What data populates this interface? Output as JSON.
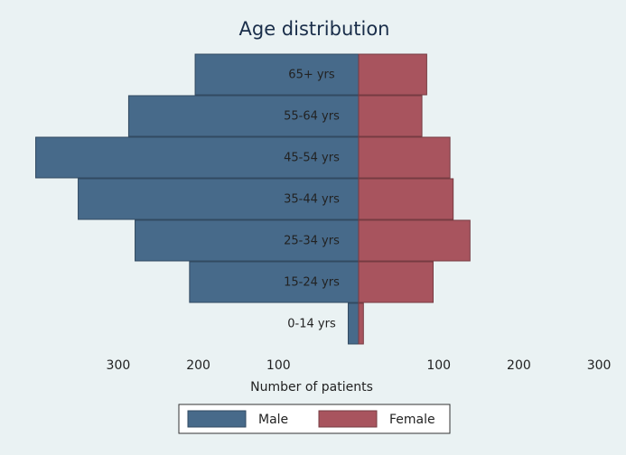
{
  "chart_data": {
    "type": "pyramid",
    "title": "Age distribution",
    "x_label": "Number of patients",
    "categories": [
      "65+ yrs",
      "55-64 yrs",
      "45-54 yrs",
      "35-44 yrs",
      "25-34 yrs",
      "15-24 yrs",
      "0-14 yrs"
    ],
    "series": [
      {
        "name": "Male",
        "color": "#476a8a",
        "values": [
          204,
          287,
          403,
          350,
          279,
          211,
          13
        ]
      },
      {
        "name": "Female",
        "color": "#a8545e",
        "values": [
          85,
          79,
          114,
          118,
          139,
          93,
          6
        ]
      }
    ],
    "xlim": [
      0,
      410
    ],
    "xticks": [
      100,
      200,
      300
    ],
    "legend": "bottom"
  }
}
